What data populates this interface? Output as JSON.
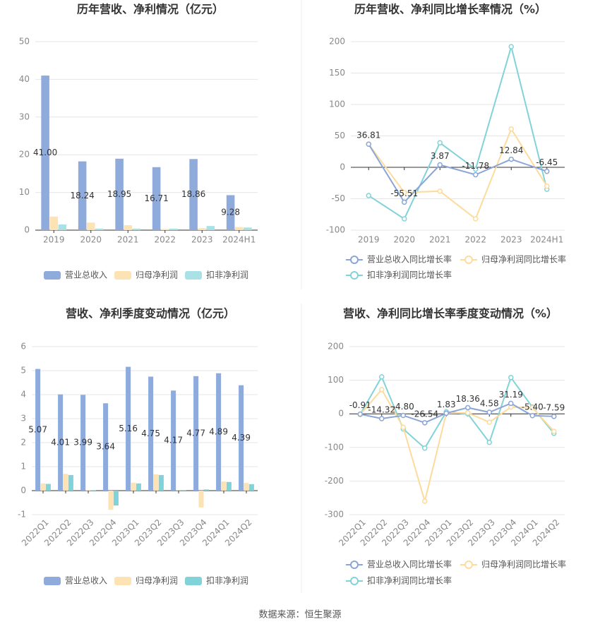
{
  "chart_data": [
    {
      "type": "bar",
      "title": "历年营收、净利情况（亿元）",
      "categories": [
        "2019",
        "2020",
        "2021",
        "2022",
        "2023",
        "2024H1"
      ],
      "series": [
        {
          "name": "营业总收入",
          "color": "#8eabdc",
          "values": [
            41.0,
            18.24,
            18.95,
            16.71,
            18.86,
            9.28
          ],
          "value_labels": [
            "41.00",
            "18.24",
            "18.95",
            "16.71",
            "18.86",
            "9.28"
          ]
        },
        {
          "name": "归母净利润",
          "color": "#fde3b4",
          "values": [
            3.6,
            2.0,
            1.3,
            0.3,
            0.5,
            0.8
          ]
        },
        {
          "name": "扣非净利润",
          "color": "#a9e2e6",
          "values": [
            1.5,
            0.4,
            0.4,
            0.4,
            1.1,
            0.7
          ]
        }
      ],
      "ylim": [
        0,
        50
      ],
      "yticks": [
        0,
        10,
        20,
        30,
        40,
        50
      ],
      "grid": true
    },
    {
      "type": "line",
      "title": "历年营收、净利同比增长率情况（%）",
      "categories": [
        "2019",
        "2020",
        "2021",
        "2022",
        "2023",
        "2024H1"
      ],
      "series": [
        {
          "name": "营业总收入同比增长率",
          "color": "#8aa5d8",
          "values": [
            36.81,
            -55.51,
            3.87,
            -11.78,
            12.84,
            -6.45
          ],
          "show_labels": true
        },
        {
          "name": "归母净利润同比增长率",
          "color": "#fddb9d",
          "values": [
            37,
            -40,
            -38,
            -82,
            61,
            -30
          ]
        },
        {
          "name": "扣非净利润同比增长率",
          "color": "#82d3d9",
          "values": [
            -45,
            -82,
            39,
            -3,
            192,
            -35
          ]
        }
      ],
      "ylim": [
        -100,
        200
      ],
      "yticks": [
        -100,
        -50,
        0,
        50,
        100,
        150,
        200
      ],
      "grid": true
    },
    {
      "type": "bar",
      "title": "营收、净利季度变动情况（亿元）",
      "categories": [
        "2022Q1",
        "2022Q2",
        "2022Q3",
        "2022Q4",
        "2023Q1",
        "2023Q2",
        "2023Q3",
        "2023Q4",
        "2024Q1",
        "2024Q2"
      ],
      "series": [
        {
          "name": "营业总收入",
          "color": "#8eabdc",
          "values": [
            5.07,
            4.01,
            3.99,
            3.64,
            5.16,
            4.75,
            4.17,
            4.77,
            4.89,
            4.39
          ],
          "show_labels": true
        },
        {
          "name": "归母净利润",
          "color": "#fde3b4",
          "values": [
            0.3,
            0.7,
            0.02,
            -0.8,
            0.33,
            0.68,
            0.01,
            -0.7,
            0.38,
            0.32
          ]
        },
        {
          "name": "扣非净利润",
          "color": "#82d3d9",
          "values": [
            0.28,
            0.65,
            0.02,
            -0.62,
            0.3,
            0.65,
            0.01,
            0.05,
            0.36,
            0.27
          ]
        }
      ],
      "ylim": [
        -1,
        6
      ],
      "yticks": [
        -1,
        0,
        1,
        2,
        3,
        4,
        5,
        6
      ],
      "grid": true
    },
    {
      "type": "line",
      "title": "营收、净利同比增长率季度变动情况（%）",
      "categories": [
        "2022Q1",
        "2022Q2",
        "2022Q3",
        "2022Q4",
        "2023Q1",
        "2023Q2",
        "2023Q3",
        "2023Q4",
        "2024Q1",
        "2024Q2"
      ],
      "series": [
        {
          "name": "营业总收入同比增长率",
          "color": "#8aa5d8",
          "values": [
            -0.91,
            -14.32,
            -4.8,
            -26.54,
            1.83,
            18.36,
            4.58,
            31.19,
            -5.4,
            -7.59
          ],
          "value_labels": [
            "-0.91",
            "-14.32",
            "-4.80",
            "-26.54",
            "1.83",
            "18.36",
            "4.58",
            "31.19",
            "-5.40",
            "-7.59"
          ]
        },
        {
          "name": "归母净利润同比增长率",
          "color": "#fddb9d",
          "values": [
            -2,
            72,
            -40,
            -260,
            2,
            3,
            -25,
            20,
            18,
            -52
          ]
        },
        {
          "name": "扣非净利润同比增长率",
          "color": "#82d3d9",
          "values": [
            -2,
            110,
            -45,
            -102,
            6,
            0,
            -85,
            108,
            20,
            -58
          ]
        }
      ],
      "ylim": [
        -300,
        200
      ],
      "yticks": [
        -300,
        -200,
        -100,
        0,
        100,
        200
      ],
      "grid": true
    }
  ],
  "source": "数据来源：恒生聚源"
}
